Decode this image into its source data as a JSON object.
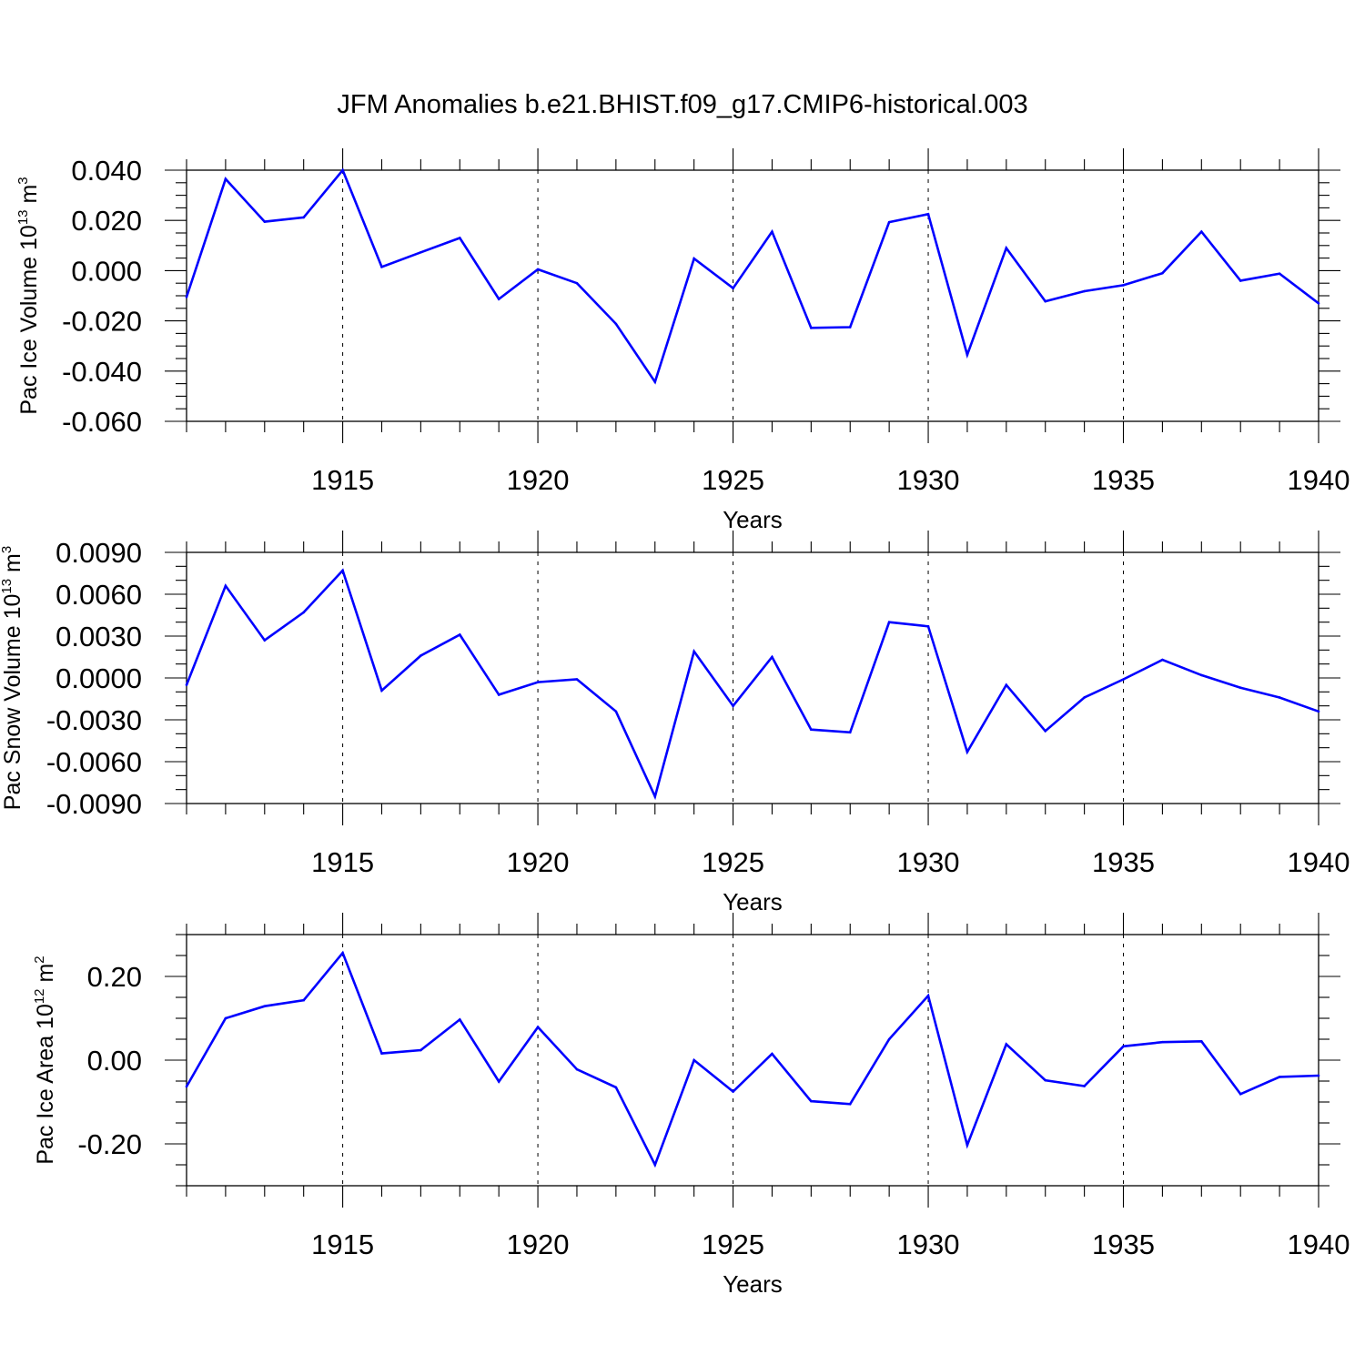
{
  "figure_title": "JFM Anomalies b.e21.BHIST.f09_g17.CMIP6-historical.003",
  "chart_data": [
    {
      "type": "line",
      "xlabel": "Years",
      "ylabel": {
        "main": "Pac Ice Volume 10",
        "sup": "13",
        "unit": " m",
        "unit_sup": "3"
      },
      "xlim": [
        1911,
        1940
      ],
      "ylim": [
        -0.06,
        0.04
      ],
      "x_ticks": [
        1915,
        1920,
        1925,
        1930,
        1935,
        1940
      ],
      "y_ticks": [
        0.04,
        0.02,
        0.0,
        -0.02,
        -0.04,
        -0.06
      ],
      "y_tick_labels": [
        "0.040",
        "0.020",
        "0.000",
        "-0.020",
        "-0.040",
        "-0.060"
      ],
      "y_minor_step": 0.005,
      "grid": "vertical dashed at major x ticks",
      "line_color": "#0000ff",
      "x": [
        1911,
        1912,
        1913,
        1914,
        1915,
        1916,
        1917,
        1918,
        1919,
        1920,
        1921,
        1922,
        1923,
        1924,
        1925,
        1926,
        1927,
        1928,
        1929,
        1930,
        1931,
        1932,
        1933,
        1934,
        1935,
        1936,
        1937,
        1938,
        1939,
        1940
      ],
      "values": [
        -0.0105,
        0.0365,
        0.0195,
        0.0212,
        0.04,
        0.0015,
        0.0073,
        0.013,
        -0.0113,
        0.0005,
        -0.005,
        -0.0212,
        -0.0443,
        0.0048,
        -0.007,
        0.0155,
        -0.0228,
        -0.0225,
        0.0193,
        0.0225,
        -0.0335,
        0.009,
        -0.0122,
        -0.0082,
        -0.0058,
        -0.001,
        0.0155,
        -0.004,
        -0.0012,
        -0.013
      ]
    },
    {
      "type": "line",
      "xlabel": "Years",
      "ylabel": {
        "main": "Pac Snow Volume 10",
        "sup": "13",
        "unit": " m",
        "unit_sup": "3"
      },
      "xlim": [
        1911,
        1940
      ],
      "ylim": [
        -0.009,
        0.009
      ],
      "x_ticks": [
        1915,
        1920,
        1925,
        1930,
        1935,
        1940
      ],
      "y_ticks": [
        0.009,
        0.006,
        0.003,
        0.0,
        -0.003,
        -0.006,
        -0.009
      ],
      "y_tick_labels": [
        "0.0090",
        "0.0060",
        "0.0030",
        "0.0000",
        "-0.0030",
        "-0.0060",
        "-0.0090"
      ],
      "y_minor_step": 0.001,
      "grid": "vertical dashed at major x ticks",
      "line_color": "#0000ff",
      "x": [
        1911,
        1912,
        1913,
        1914,
        1915,
        1916,
        1917,
        1918,
        1919,
        1920,
        1921,
        1922,
        1923,
        1924,
        1925,
        1926,
        1927,
        1928,
        1929,
        1930,
        1931,
        1932,
        1933,
        1934,
        1935,
        1936,
        1937,
        1938,
        1939,
        1940
      ],
      "values": [
        -0.0005,
        0.0066,
        0.0027,
        0.0047,
        0.0077,
        -0.0009,
        0.0016,
        0.0031,
        -0.0012,
        -0.0003,
        -0.0001,
        -0.0024,
        -0.0085,
        0.0019,
        -0.002,
        0.0015,
        -0.0037,
        -0.0039,
        0.004,
        0.0037,
        -0.0053,
        -0.0005,
        -0.0038,
        -0.0014,
        -0.0001,
        0.0013,
        0.0002,
        -0.0007,
        -0.0014,
        -0.0024
      ]
    },
    {
      "type": "line",
      "xlabel": "Years",
      "ylabel": {
        "main": "Pac Ice Area 10",
        "sup": "12",
        "unit": " m",
        "unit_sup": "2"
      },
      "xlim": [
        1911,
        1940
      ],
      "ylim": [
        -0.3,
        0.3
      ],
      "x_ticks": [
        1915,
        1920,
        1925,
        1930,
        1935,
        1940
      ],
      "y_ticks": [
        0.2,
        0.0,
        -0.2
      ],
      "y_tick_labels": [
        "0.20",
        "0.00",
        "-0.20"
      ],
      "y_minor_step": 0.05,
      "grid": "vertical dashed at major x ticks",
      "line_color": "#0000ff",
      "x": [
        1911,
        1912,
        1913,
        1914,
        1915,
        1916,
        1917,
        1918,
        1919,
        1920,
        1921,
        1922,
        1923,
        1924,
        1925,
        1926,
        1927,
        1928,
        1929,
        1930,
        1931,
        1932,
        1933,
        1934,
        1935,
        1936,
        1937,
        1938,
        1939,
        1940
      ],
      "values": [
        -0.063,
        0.1,
        0.129,
        0.143,
        0.256,
        0.016,
        0.024,
        0.097,
        -0.051,
        0.079,
        -0.022,
        -0.065,
        -0.25,
        0.0,
        -0.075,
        0.015,
        -0.098,
        -0.105,
        0.05,
        0.154,
        -0.203,
        0.038,
        -0.048,
        -0.062,
        0.033,
        0.043,
        0.045,
        -0.081,
        -0.04,
        -0.037
      ]
    }
  ]
}
